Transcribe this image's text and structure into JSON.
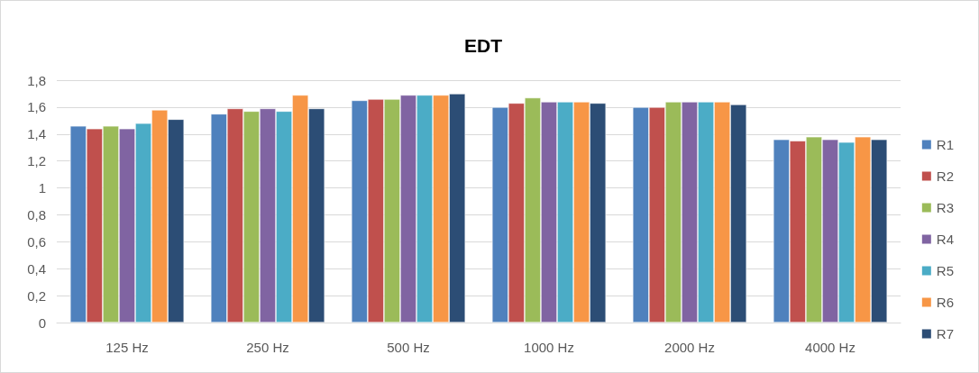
{
  "chart_data": {
    "type": "bar",
    "title": "EDT",
    "categories": [
      "125 Hz",
      "250 Hz",
      "500 Hz",
      "1000 Hz",
      "2000 Hz",
      "4000 Hz"
    ],
    "series": [
      {
        "name": "R1",
        "color": "#4f81bd",
        "values": [
          1.46,
          1.55,
          1.65,
          1.6,
          1.6,
          1.36
        ]
      },
      {
        "name": "R2",
        "color": "#c0504d",
        "values": [
          1.44,
          1.59,
          1.66,
          1.63,
          1.6,
          1.35
        ]
      },
      {
        "name": "R3",
        "color": "#9bbb59",
        "values": [
          1.46,
          1.57,
          1.66,
          1.67,
          1.64,
          1.38
        ]
      },
      {
        "name": "R4",
        "color": "#8064a2",
        "values": [
          1.44,
          1.59,
          1.69,
          1.64,
          1.64,
          1.36
        ]
      },
      {
        "name": "R5",
        "color": "#4bacc6",
        "values": [
          1.48,
          1.57,
          1.69,
          1.64,
          1.64,
          1.34
        ]
      },
      {
        "name": "R6",
        "color": "#f79646",
        "values": [
          1.58,
          1.69,
          1.69,
          1.64,
          1.64,
          1.38
        ]
      },
      {
        "name": "R7",
        "color": "#2c4d75",
        "values": [
          1.51,
          1.59,
          1.7,
          1.63,
          1.62,
          1.36
        ]
      }
    ],
    "ylim": [
      0,
      1.8
    ],
    "yticks": [
      0,
      {
        "value": 0.2,
        "label": "0,2"
      },
      {
        "value": 0.4,
        "label": "0,4"
      },
      {
        "value": 0.6,
        "label": "0,6"
      },
      {
        "value": 0.8,
        "label": "0,8"
      },
      1,
      {
        "value": 1.2,
        "label": "1,2"
      },
      {
        "value": 1.4,
        "label": "1,4"
      },
      {
        "value": 1.6,
        "label": "1,6"
      },
      {
        "value": 1.8,
        "label": "1,8"
      }
    ],
    "grid": "y",
    "legend": "right"
  }
}
